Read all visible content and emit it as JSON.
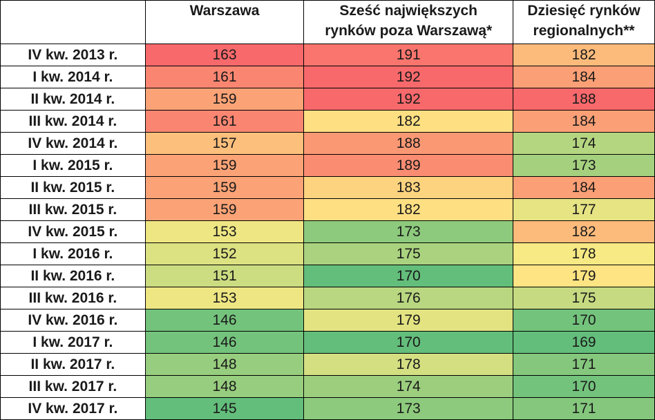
{
  "chart_data": {
    "type": "heatmap",
    "columns": [
      {
        "label_lines": [
          "Warszawa"
        ]
      },
      {
        "label_lines": [
          "Sześć największych",
          "rynków poza Warszawą*"
        ]
      },
      {
        "label_lines": [
          "Dziesięć rynków",
          "regionalnych**"
        ]
      }
    ],
    "rows": [
      {
        "label": "IV kw. 2013 r.",
        "values": [
          163,
          191,
          182
        ]
      },
      {
        "label": "I kw. 2014 r.",
        "values": [
          161,
          192,
          184
        ]
      },
      {
        "label": "II kw. 2014 r.",
        "values": [
          159,
          192,
          188
        ]
      },
      {
        "label": "III kw. 2014 r.",
        "values": [
          161,
          182,
          184
        ]
      },
      {
        "label": "IV kw. 2014 r.",
        "values": [
          157,
          188,
          174
        ]
      },
      {
        "label": "I kw. 2015 r.",
        "values": [
          159,
          189,
          173
        ]
      },
      {
        "label": "II kw. 2015 r.",
        "values": [
          159,
          183,
          184
        ]
      },
      {
        "label": "III kw. 2015 r.",
        "values": [
          159,
          182,
          177
        ]
      },
      {
        "label": "IV kw. 2015 r.",
        "values": [
          153,
          173,
          182
        ]
      },
      {
        "label": "I kw. 2016 r.",
        "values": [
          152,
          175,
          178
        ]
      },
      {
        "label": "II kw. 2016 r.",
        "values": [
          151,
          170,
          179
        ]
      },
      {
        "label": "III kw. 2016 r.",
        "values": [
          153,
          176,
          175
        ]
      },
      {
        "label": "IV kw. 2016 r.",
        "values": [
          146,
          179,
          170
        ]
      },
      {
        "label": "I kw. 2017 r.",
        "values": [
          146,
          170,
          169
        ]
      },
      {
        "label": "II kw. 2017 r.",
        "values": [
          148,
          178,
          171
        ]
      },
      {
        "label": "III kw. 2017 r.",
        "values": [
          148,
          174,
          170
        ]
      },
      {
        "label": "IV kw. 2017 r.",
        "values": [
          145,
          173,
          171
        ]
      }
    ],
    "color_scale": {
      "low": "#63be7b",
      "mid": "#ffeb84",
      "high": "#f8696b"
    }
  }
}
